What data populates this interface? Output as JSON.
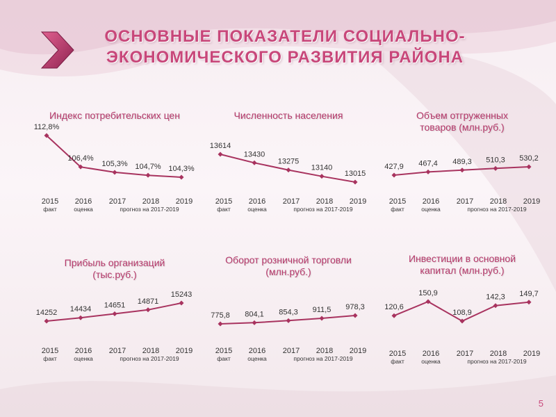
{
  "title": {
    "line1": "ОСНОВНЫЕ ПОКАЗАТЕЛИ СОЦИАЛЬНО-",
    "line2": "ЭКОНОМИЧЕСКОГО РАЗВИТИЯ РАЙОНА"
  },
  "page_number": "5",
  "colors": {
    "accent": "#c8477a",
    "line": "#a8335f",
    "title": "#b5386a"
  },
  "chart_data": [
    {
      "type": "line",
      "title_lines": [
        "Индекс потребительских цен"
      ],
      "categories": [
        "2015",
        "2016",
        "2017",
        "2018",
        "2019"
      ],
      "labels": [
        "112,8%",
        "106,4%",
        "105,3%",
        "104,7%",
        "104,3%"
      ],
      "values": [
        112.8,
        106.4,
        105.3,
        104.7,
        104.3
      ],
      "sublabels": {
        "fact": "факт",
        "estimate": "оценка",
        "forecast": "прогноз на 2017-2019"
      }
    },
    {
      "type": "line",
      "title_lines": [
        "Численность населения"
      ],
      "categories": [
        "2015",
        "2016",
        "2017",
        "2018",
        "2019"
      ],
      "labels": [
        "13614",
        "13430",
        "13275",
        "13140",
        "13015"
      ],
      "values": [
        13614,
        13430,
        13275,
        13140,
        13015
      ],
      "sublabels": {
        "fact": "факт",
        "estimate": "оценка",
        "forecast": "прогноз на 2017-2019"
      }
    },
    {
      "type": "line",
      "title_lines": [
        "Объем отгруженных",
        "товаров (млн.руб.)"
      ],
      "categories": [
        "2015",
        "2016",
        "2017",
        "2018",
        "2019"
      ],
      "labels": [
        "427,9",
        "467,4",
        "489,3",
        "510,3",
        "530,2"
      ],
      "values": [
        427.9,
        467.4,
        489.3,
        510.3,
        530.2
      ],
      "sublabels": {
        "fact": "факт",
        "estimate": "оценка",
        "forecast": "прогноз на 2017-2019"
      }
    },
    {
      "type": "line",
      "title_lines": [
        "Прибыль организаций",
        "(тыс.руб.)"
      ],
      "categories": [
        "2015",
        "2016",
        "2017",
        "2018",
        "2019"
      ],
      "labels": [
        "14252",
        "14434",
        "14651",
        "14871",
        "15243"
      ],
      "values": [
        14252,
        14434,
        14651,
        14871,
        15243
      ],
      "sublabels": {
        "fact": "факт",
        "estimate": "оценка",
        "forecast": "прогноз на 2017-2019"
      }
    },
    {
      "type": "line",
      "title_lines": [
        "Оборот розничной торговли",
        "(млн.руб.)"
      ],
      "categories": [
        "2015",
        "2016",
        "2017",
        "2018",
        "2019"
      ],
      "labels": [
        "775,8",
        "804,1",
        "854,3",
        "911,5",
        "978,3"
      ],
      "values": [
        775.8,
        804.1,
        854.3,
        911.5,
        978.3
      ],
      "sublabels": {
        "fact": "факт",
        "estimate": "оценка",
        "forecast": "прогноз на 2017-2019"
      }
    },
    {
      "type": "line",
      "title_lines": [
        "Инвестиции в основной",
        "капитал (млн.руб.)"
      ],
      "categories": [
        "2015",
        "2016",
        "2017",
        "2018",
        "2019"
      ],
      "labels": [
        "120,6",
        "150,9",
        "108,9",
        "142,3",
        "149,7"
      ],
      "values": [
        120.6,
        150.9,
        108.9,
        142.3,
        149.7
      ],
      "sublabels": {
        "fact": "факт",
        "estimate": "оценка",
        "forecast": "прогноз на 2017-2019"
      }
    }
  ]
}
